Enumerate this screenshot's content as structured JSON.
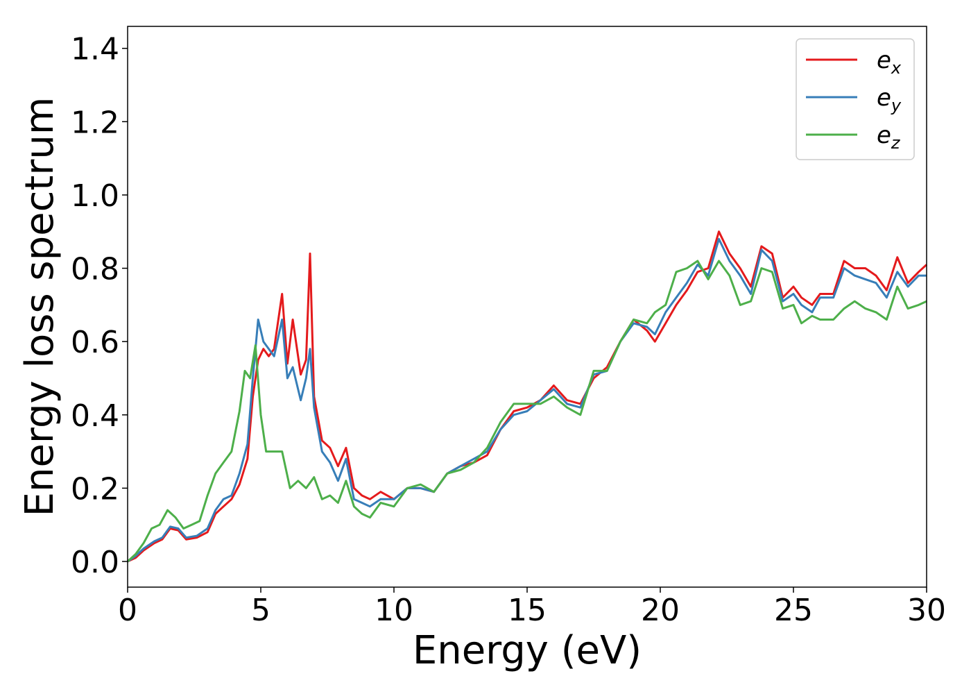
{
  "chart_data": {
    "type": "line",
    "title": "",
    "xlabel": "Energy (eV)",
    "ylabel": "Energy loss spectrum",
    "xlim": [
      0,
      30
    ],
    "ylim": [
      -0.07,
      1.46
    ],
    "xticks": [
      0,
      5,
      10,
      15,
      20,
      25,
      30
    ],
    "xtick_labels": [
      "0",
      "5",
      "10",
      "15",
      "20",
      "25",
      "30"
    ],
    "yticks": [
      0.0,
      0.2,
      0.4,
      0.6,
      0.8,
      1.0,
      1.2,
      1.4
    ],
    "ytick_labels": [
      "0.0",
      "0.2",
      "0.4",
      "0.6",
      "0.8",
      "1.0",
      "1.2",
      "1.4"
    ],
    "grid": false,
    "legend_position": "top-right",
    "series": [
      {
        "name_base": "e",
        "name_sub": "x",
        "color": "#e41a1c",
        "x": [
          0,
          0.3,
          0.6,
          1.0,
          1.3,
          1.6,
          1.9,
          2.2,
          2.6,
          3.0,
          3.3,
          3.6,
          3.9,
          4.2,
          4.5,
          4.7,
          4.9,
          5.1,
          5.3,
          5.5,
          5.8,
          6.0,
          6.2,
          6.5,
          6.7,
          6.85,
          7.0,
          7.3,
          7.6,
          7.9,
          8.2,
          8.5,
          8.8,
          9.1,
          9.5,
          10.0,
          10.5,
          11.0,
          11.5,
          12.0,
          12.5,
          13.0,
          13.5,
          14.0,
          14.5,
          15.0,
          15.5,
          16.0,
          16.5,
          17.0,
          17.5,
          18.0,
          18.5,
          19.0,
          19.5,
          19.8,
          20.2,
          20.6,
          21.0,
          21.4,
          21.8,
          22.2,
          22.6,
          23.0,
          23.4,
          23.8,
          24.2,
          24.6,
          25.0,
          25.3,
          25.7,
          26.0,
          26.5,
          26.9,
          27.3,
          27.7,
          28.1,
          28.5,
          28.9,
          29.3,
          29.7,
          30.0
        ],
        "y": [
          0.0,
          0.01,
          0.03,
          0.05,
          0.06,
          0.09,
          0.085,
          0.06,
          0.065,
          0.08,
          0.13,
          0.15,
          0.17,
          0.21,
          0.28,
          0.45,
          0.55,
          0.58,
          0.56,
          0.58,
          0.73,
          0.54,
          0.66,
          0.51,
          0.55,
          0.84,
          0.45,
          0.33,
          0.31,
          0.26,
          0.31,
          0.2,
          0.18,
          0.17,
          0.19,
          0.17,
          0.2,
          0.2,
          0.19,
          0.24,
          0.26,
          0.27,
          0.29,
          0.36,
          0.41,
          0.42,
          0.44,
          0.48,
          0.44,
          0.43,
          0.5,
          0.53,
          0.6,
          0.66,
          0.63,
          0.6,
          0.65,
          0.7,
          0.74,
          0.79,
          0.8,
          0.9,
          0.84,
          0.8,
          0.75,
          0.86,
          0.84,
          0.72,
          0.75,
          0.72,
          0.7,
          0.73,
          0.73,
          0.82,
          0.8,
          0.8,
          0.78,
          0.74,
          0.83,
          0.76,
          0.79,
          0.81
        ]
      },
      {
        "name_base": "e",
        "name_sub": "y",
        "color": "#377eb8",
        "x": [
          0,
          0.3,
          0.6,
          1.0,
          1.3,
          1.6,
          1.9,
          2.2,
          2.6,
          3.0,
          3.3,
          3.6,
          3.9,
          4.2,
          4.5,
          4.7,
          4.9,
          5.1,
          5.3,
          5.5,
          5.8,
          6.0,
          6.2,
          6.5,
          6.7,
          6.85,
          7.0,
          7.3,
          7.6,
          7.9,
          8.2,
          8.5,
          8.8,
          9.1,
          9.5,
          10.0,
          10.5,
          11.0,
          11.5,
          12.0,
          12.5,
          13.0,
          13.5,
          14.0,
          14.5,
          15.0,
          15.5,
          16.0,
          16.5,
          17.0,
          17.5,
          18.0,
          18.5,
          19.0,
          19.5,
          19.8,
          20.2,
          20.6,
          21.0,
          21.4,
          21.8,
          22.2,
          22.6,
          23.0,
          23.4,
          23.8,
          24.2,
          24.6,
          25.0,
          25.3,
          25.7,
          26.0,
          26.5,
          26.9,
          27.3,
          27.7,
          28.1,
          28.5,
          28.9,
          29.3,
          29.7,
          30.0
        ],
        "y": [
          0.0,
          0.015,
          0.035,
          0.055,
          0.065,
          0.095,
          0.09,
          0.065,
          0.07,
          0.09,
          0.14,
          0.17,
          0.18,
          0.24,
          0.32,
          0.5,
          0.66,
          0.6,
          0.58,
          0.56,
          0.66,
          0.5,
          0.53,
          0.44,
          0.5,
          0.58,
          0.42,
          0.3,
          0.27,
          0.22,
          0.28,
          0.17,
          0.16,
          0.15,
          0.17,
          0.17,
          0.2,
          0.2,
          0.19,
          0.24,
          0.26,
          0.28,
          0.3,
          0.36,
          0.4,
          0.41,
          0.44,
          0.47,
          0.43,
          0.42,
          0.51,
          0.52,
          0.6,
          0.65,
          0.64,
          0.62,
          0.68,
          0.72,
          0.76,
          0.81,
          0.78,
          0.88,
          0.82,
          0.78,
          0.73,
          0.85,
          0.82,
          0.71,
          0.73,
          0.7,
          0.68,
          0.72,
          0.72,
          0.8,
          0.78,
          0.77,
          0.76,
          0.72,
          0.79,
          0.75,
          0.78,
          0.78
        ]
      },
      {
        "name_base": "e",
        "name_sub": "z",
        "color": "#4daf4a",
        "x": [
          0,
          0.3,
          0.6,
          0.9,
          1.2,
          1.5,
          1.8,
          2.1,
          2.4,
          2.7,
          3.0,
          3.3,
          3.6,
          3.9,
          4.2,
          4.4,
          4.6,
          4.8,
          5.0,
          5.2,
          5.5,
          5.8,
          6.1,
          6.4,
          6.7,
          7.0,
          7.3,
          7.6,
          7.9,
          8.2,
          8.5,
          8.8,
          9.1,
          9.5,
          10.0,
          10.5,
          11.0,
          11.5,
          12.0,
          12.5,
          13.0,
          13.5,
          14.0,
          14.5,
          15.0,
          15.5,
          16.0,
          16.5,
          17.0,
          17.5,
          18.0,
          18.5,
          19.0,
          19.5,
          19.8,
          20.2,
          20.6,
          21.0,
          21.4,
          21.8,
          22.2,
          22.6,
          23.0,
          23.4,
          23.8,
          24.2,
          24.6,
          25.0,
          25.3,
          25.7,
          26.0,
          26.5,
          26.9,
          27.3,
          27.7,
          28.1,
          28.5,
          28.9,
          29.3,
          29.7,
          30.0
        ],
        "y": [
          0.0,
          0.02,
          0.05,
          0.09,
          0.1,
          0.14,
          0.12,
          0.09,
          0.1,
          0.11,
          0.18,
          0.24,
          0.27,
          0.3,
          0.41,
          0.52,
          0.5,
          0.59,
          0.4,
          0.3,
          0.3,
          0.3,
          0.2,
          0.22,
          0.2,
          0.23,
          0.17,
          0.18,
          0.16,
          0.22,
          0.15,
          0.13,
          0.12,
          0.16,
          0.15,
          0.2,
          0.21,
          0.19,
          0.24,
          0.25,
          0.27,
          0.31,
          0.38,
          0.43,
          0.43,
          0.43,
          0.45,
          0.42,
          0.4,
          0.52,
          0.52,
          0.6,
          0.66,
          0.65,
          0.68,
          0.7,
          0.79,
          0.8,
          0.82,
          0.77,
          0.82,
          0.78,
          0.7,
          0.71,
          0.8,
          0.79,
          0.69,
          0.7,
          0.65,
          0.67,
          0.66,
          0.66,
          0.69,
          0.71,
          0.69,
          0.68,
          0.66,
          0.75,
          0.69,
          0.7,
          0.71
        ]
      }
    ]
  }
}
